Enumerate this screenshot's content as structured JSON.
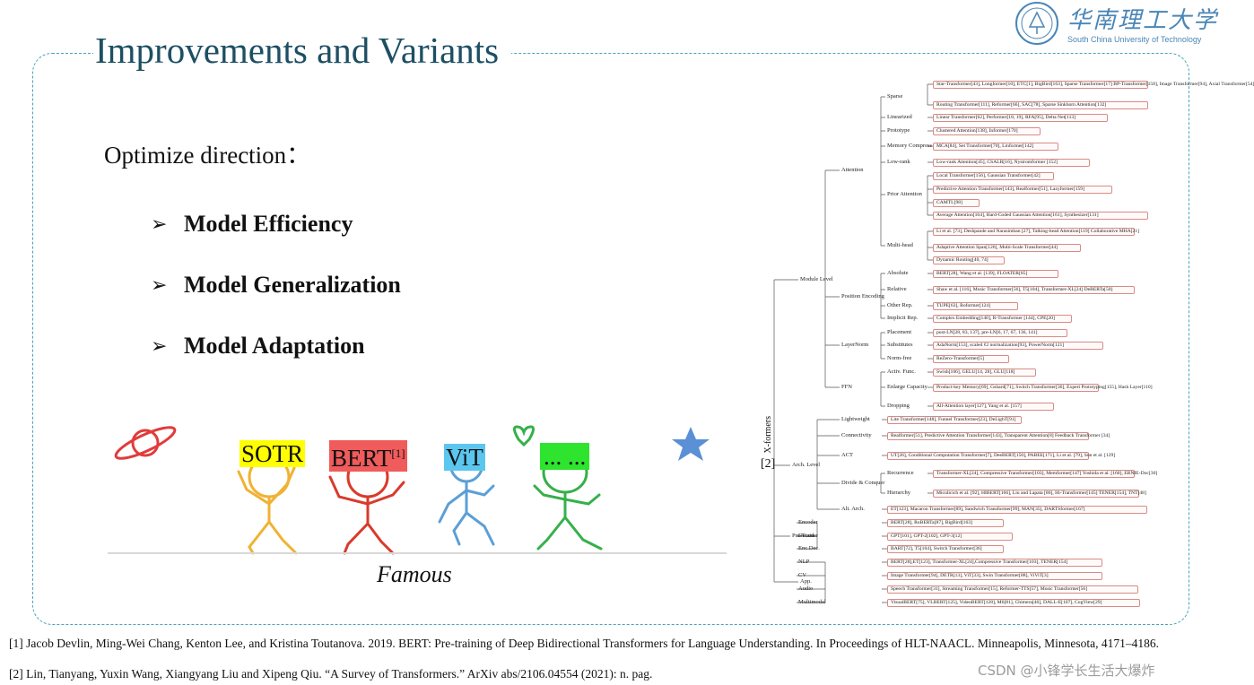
{
  "slide": {
    "title": "Improvements and Variants",
    "logo_cn": "华南理工大学",
    "logo_en": "South China University of Technology"
  },
  "left": {
    "heading": "Optimize direction：",
    "bullets": [
      "Model Efficiency",
      "Model Generalization",
      "Model Adaptation"
    ],
    "bullet_symbol": "➢",
    "caption": "Famous",
    "labels": [
      {
        "text": "SOTR",
        "bg": "#ffff00"
      },
      {
        "text": "BERT",
        "sup": "[1]",
        "bg": "#f05b5b"
      },
      {
        "text": "ViT",
        "bg": "#5bc7ef"
      },
      {
        "text": "... ...",
        "bg": "#2ee42e"
      }
    ]
  },
  "references": [
    "[1] Jacob Devlin, Ming-Wei Chang, Kenton Lee, and Kristina Toutanova. 2019. BERT: Pre-training of Deep Bidirectional Transformers for Language Understanding. In Proceedings of HLT-NAACL. Minneapolis, Minnesota, 4171–4186.",
    "[2] Lin, Tianyang, Yuxin Wang, Xiangyang Liu and Xipeng Qiu. “A Survey of Transformers.” ArXiv abs/2106.04554 (2021): n. pag."
  ],
  "watermark": "CSDN @小锋学长生活大爆炸",
  "taxonomy": {
    "root": "X-formers",
    "cite": "[2]",
    "l1": [
      "Module Level",
      "Arch. Level",
      "Pre-Train",
      "App."
    ],
    "l2": [
      "Attention",
      "Position Encoding",
      "LayerNorm",
      "FFN",
      "Lightweight",
      "Connectivity",
      "ACT",
      "Divide & Conquer",
      "Alt. Arch.",
      "Encoder",
      "Decoder",
      "Enc.Dec.",
      "NLP",
      "CV",
      "Audio",
      "Multimodal"
    ],
    "l3": [
      "Sparse",
      "Linearized",
      "Prototype",
      "Memory Compress",
      "Low-rank",
      "Prior Attention",
      "Multi-head",
      "Absolute",
      "Relative",
      "Other Rep.",
      "Implicit Rep.",
      "Placement",
      "Substitutes",
      "Norm-free",
      "Activ. Func.",
      "Enlarge Capacity",
      "Dropping",
      "Recurrence",
      "Hierarchy"
    ],
    "leaves": [
      "Star-Transformer[43], Longformer[10], ETC[1], BigBird[163], Sparse Transformer[17] BP-Transformer[158], Image Transformer[94], Axial Transformer[54]",
      "Routing Transformer[111], Reformer[66], SAC[78], Sparse Sinkhorn Attention[132]",
      "Linear Transformer[62], Performer[18, 19], RFA[95], Delta Net[113]",
      "Clustered Attention[138], Informer[170]",
      "MCA[84], Set Transformer[70], Linformer[142]",
      "Low-rank Attention[45], CSALR[16], Nystromformer [152]",
      "Local Transformer[156], Gaussian Transformer[42]",
      "Predictive Attention Transformer[143], Realformer[51], Lazyformer[159]",
      "CAMTL[98]",
      "Average Attention[164], Hard-Coded Gaussian Attention[161], Synthesizer[131]",
      "Li et al. [73], Deshpande and Narasimhan [27], Talking-head Attention[119] Collaborative MHA[21]",
      "Adaptive Attention Span[126], Multi-Scale Transformer[44]",
      "Dynamic Routing[40, 74]",
      "BERT[28], Wang et al. [139], FLOATER[85]",
      "Shaw et al. [116], Music Transformer[56], T5[104], Transformer-XL[24] DeBERTa[50]",
      "TUPE[63], Roformer[124]",
      "Complex Embedding[140], R-Transformer [144], CPE[20]",
      "post-LN[28, 83, 137], pre-LN[6, 17, 67, 136, 141]",
      "AdaNorm[153], scaled ℓ2 normalization[93], PowerNorm[121]",
      "ReZero-Transformer[5]",
      "Swish[106], GELU[14, 28], GLU[118]",
      "Product-key Memory[69], Gshard[71], Switch Transformer[36], Expert Prototyping[155], Hash Layer[110]",
      "All-Attention layer[127], Yang et al. [157]",
      "Lite Transformer[148], Funnel Transformer[23], DeLighT[91]",
      "Realformer[51], Predictive Attention Transformer[143], Transparent Attention[8] Feedback Transformer [34]",
      "UT[26], Conditional Computation Transformer[7], DeeBERT[150], PABEE[171], Li et al. [79], Sun et al. [129]",
      "Transformer-XL[24], Compressive Transformer[103], Memformer[147] Yoshida et al. [160], ERNIE-Doc[30]",
      "Miculicich et al. [92], HIBERT[166], Liu and Lapata [86], Hi-Transformer[145] TENER[154], TNT[48]",
      "ET[123], Macaron Transformer[89], Sandwich Transformer[99], MAN[35], DARTSformer[167]",
      "BERT[28], RoBERTa[87], BigBird[163]",
      "GPT[101], GPT-2[102], GPT-3[12]",
      "BART[72], T5[104], Switch Transformer[36]",
      "BERT[28],ET[123], Transformer-XL[24],Compressive Transformer[103], TENER[154]",
      "Image Transformer[94], DETR[13], ViT[33], Swin Transformer[88], ViViT[3]",
      "Speech Transformer[31], Streaming Transformer[15], Reformer-TTS[57], Music Transformer[56]",
      "VisualBERT[75], VLBERT[125], VideoBERT[128], M6[81], Chimera[46], DALL-E[107], CogView[29]"
    ]
  }
}
